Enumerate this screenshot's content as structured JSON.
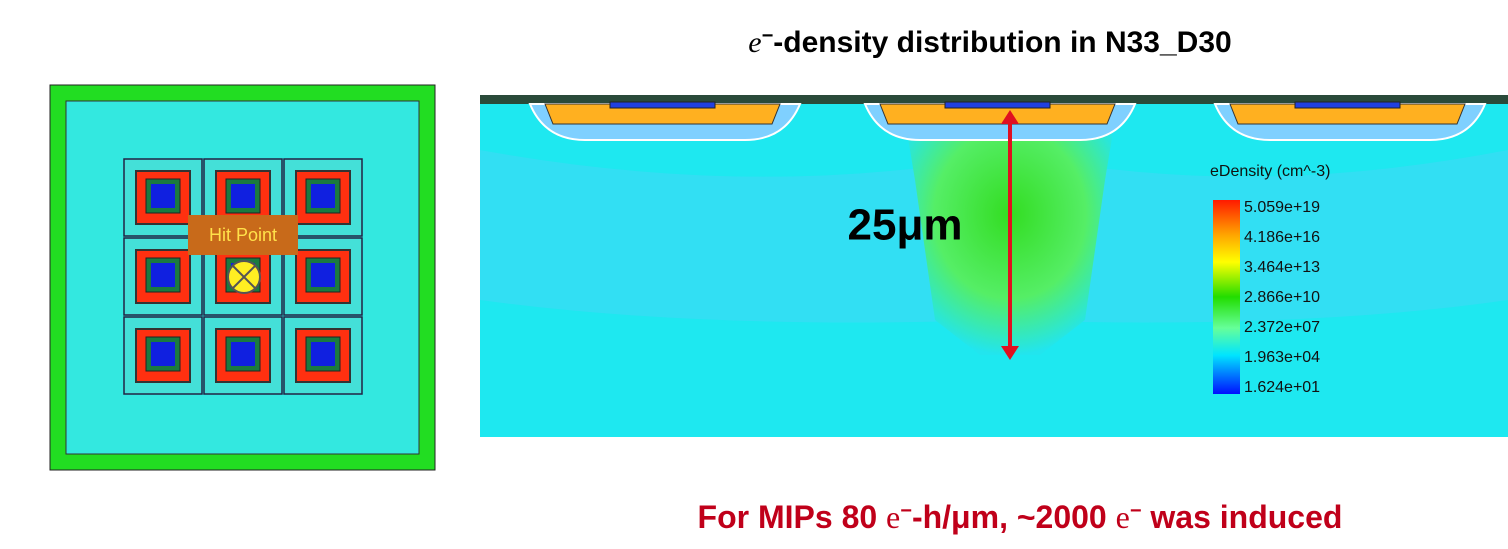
{
  "title": {
    "symbol": "e",
    "superscript": "−",
    "text": "-density distribution in N33_D30"
  },
  "left_panel": {
    "label": "Hit Point"
  },
  "section": {
    "dimension": "25μm",
    "legend": {
      "title": "eDensity (cm^-3)",
      "labels": [
        "5.059e+19",
        "4.186e+16",
        "3.464e+13",
        "2.866e+10",
        "2.372e+07",
        "1.963e+04",
        "1.624e+01"
      ]
    }
  },
  "footer": {
    "parts": [
      "For MIPs 80 ",
      "e",
      "−",
      "-h/μm",
      ",  ~2000 ",
      "e",
      "−",
      " was induced"
    ]
  }
}
